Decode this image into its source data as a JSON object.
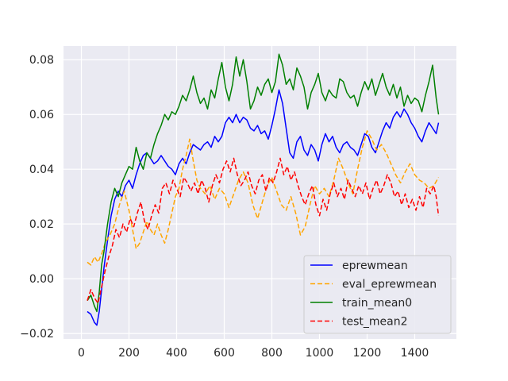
{
  "chart_data": {
    "type": "line",
    "title": "",
    "xlabel": "",
    "ylabel": "",
    "xlim": [
      -75,
      1575
    ],
    "ylim": [
      -0.022,
      0.085
    ],
    "xticks": [
      0,
      200,
      400,
      600,
      800,
      1000,
      1200,
      1400
    ],
    "yticks": [
      -0.02,
      0.0,
      0.02,
      0.04,
      0.06,
      0.08
    ],
    "ytick_labels": [
      "−0.02",
      "0.00",
      "0.02",
      "0.04",
      "0.06",
      "0.08"
    ],
    "grid": true,
    "background": "#eaeaf2",
    "legend_position": "lower right",
    "series": [
      {
        "name": "eprewmean",
        "color": "#0000ff",
        "dash": "solid",
        "x": [
          25,
          40,
          55,
          65,
          75,
          85,
          95,
          110,
          125,
          140,
          155,
          170,
          185,
          200,
          215,
          230,
          245,
          260,
          275,
          290,
          305,
          320,
          335,
          350,
          365,
          380,
          395,
          410,
          425,
          440,
          455,
          470,
          485,
          500,
          515,
          530,
          545,
          560,
          575,
          590,
          605,
          620,
          635,
          650,
          665,
          680,
          695,
          710,
          725,
          740,
          755,
          770,
          785,
          800,
          815,
          830,
          845,
          860,
          875,
          890,
          905,
          920,
          935,
          950,
          965,
          980,
          995,
          1010,
          1025,
          1040,
          1055,
          1070,
          1085,
          1100,
          1115,
          1130,
          1145,
          1160,
          1175,
          1190,
          1205,
          1220,
          1235,
          1250,
          1265,
          1280,
          1295,
          1310,
          1325,
          1340,
          1355,
          1370,
          1385,
          1400,
          1415,
          1430,
          1445,
          1460,
          1475,
          1490,
          1500
        ],
        "y": [
          -0.012,
          -0.013,
          -0.016,
          -0.017,
          -0.012,
          -0.004,
          0.004,
          0.014,
          0.023,
          0.029,
          0.032,
          0.03,
          0.034,
          0.036,
          0.033,
          0.038,
          0.042,
          0.045,
          0.046,
          0.044,
          0.042,
          0.043,
          0.045,
          0.043,
          0.041,
          0.04,
          0.038,
          0.042,
          0.044,
          0.042,
          0.046,
          0.049,
          0.048,
          0.047,
          0.049,
          0.05,
          0.048,
          0.052,
          0.05,
          0.052,
          0.057,
          0.059,
          0.057,
          0.06,
          0.057,
          0.059,
          0.058,
          0.055,
          0.054,
          0.056,
          0.053,
          0.054,
          0.051,
          0.056,
          0.062,
          0.069,
          0.064,
          0.055,
          0.046,
          0.044,
          0.05,
          0.052,
          0.047,
          0.045,
          0.049,
          0.047,
          0.043,
          0.049,
          0.053,
          0.05,
          0.052,
          0.048,
          0.046,
          0.049,
          0.05,
          0.048,
          0.047,
          0.045,
          0.049,
          0.053,
          0.052,
          0.048,
          0.046,
          0.05,
          0.054,
          0.057,
          0.055,
          0.059,
          0.061,
          0.059,
          0.062,
          0.06,
          0.057,
          0.055,
          0.052,
          0.05,
          0.054,
          0.057,
          0.055,
          0.053,
          0.057
        ]
      },
      {
        "name": "eval_eprewmean",
        "color": "#ffa500",
        "dash": "6,3",
        "x": [
          25,
          40,
          55,
          70,
          85,
          100,
          120,
          140,
          160,
          180,
          200,
          215,
          230,
          245,
          260,
          275,
          290,
          305,
          320,
          335,
          350,
          365,
          380,
          395,
          410,
          425,
          440,
          455,
          470,
          485,
          500,
          520,
          540,
          560,
          580,
          600,
          620,
          640,
          660,
          680,
          700,
          720,
          740,
          760,
          780,
          800,
          820,
          840,
          860,
          880,
          900,
          920,
          940,
          960,
          980,
          1000,
          1020,
          1040,
          1060,
          1080,
          1100,
          1120,
          1140,
          1160,
          1180,
          1200,
          1220,
          1240,
          1260,
          1280,
          1300,
          1320,
          1340,
          1360,
          1380,
          1400,
          1420,
          1440,
          1460,
          1480,
          1500
        ],
        "y": [
          0.006,
          0.005,
          0.008,
          0.006,
          0.009,
          0.013,
          0.016,
          0.02,
          0.027,
          0.032,
          0.025,
          0.018,
          0.011,
          0.013,
          0.017,
          0.021,
          0.018,
          0.016,
          0.02,
          0.016,
          0.013,
          0.018,
          0.024,
          0.03,
          0.033,
          0.04,
          0.045,
          0.051,
          0.043,
          0.036,
          0.033,
          0.031,
          0.034,
          0.029,
          0.033,
          0.031,
          0.026,
          0.031,
          0.036,
          0.039,
          0.035,
          0.027,
          0.022,
          0.028,
          0.034,
          0.037,
          0.032,
          0.027,
          0.025,
          0.03,
          0.024,
          0.016,
          0.019,
          0.027,
          0.034,
          0.031,
          0.033,
          0.03,
          0.036,
          0.044,
          0.04,
          0.035,
          0.031,
          0.04,
          0.048,
          0.054,
          0.051,
          0.047,
          0.049,
          0.046,
          0.042,
          0.038,
          0.035,
          0.039,
          0.042,
          0.038,
          0.036,
          0.035,
          0.033,
          0.034,
          0.037
        ]
      },
      {
        "name": "train_mean0",
        "color": "#008000",
        "dash": "solid",
        "x": [
          25,
          40,
          55,
          65,
          75,
          85,
          95,
          110,
          125,
          140,
          155,
          170,
          185,
          200,
          215,
          230,
          245,
          260,
          275,
          290,
          305,
          320,
          335,
          350,
          365,
          380,
          395,
          410,
          425,
          440,
          455,
          470,
          485,
          500,
          515,
          530,
          545,
          560,
          575,
          590,
          605,
          620,
          635,
          650,
          665,
          680,
          695,
          710,
          725,
          740,
          755,
          770,
          785,
          800,
          815,
          830,
          845,
          860,
          875,
          890,
          905,
          920,
          935,
          950,
          965,
          980,
          995,
          1010,
          1025,
          1040,
          1055,
          1070,
          1085,
          1100,
          1115,
          1130,
          1145,
          1160,
          1175,
          1190,
          1205,
          1220,
          1235,
          1250,
          1265,
          1280,
          1295,
          1310,
          1325,
          1340,
          1355,
          1370,
          1385,
          1400,
          1415,
          1430,
          1445,
          1460,
          1475,
          1490,
          1500
        ],
        "y": [
          -0.008,
          -0.006,
          -0.01,
          -0.012,
          -0.005,
          0.005,
          0.01,
          0.02,
          0.028,
          0.033,
          0.03,
          0.035,
          0.038,
          0.041,
          0.04,
          0.048,
          0.043,
          0.04,
          0.046,
          0.044,
          0.049,
          0.053,
          0.056,
          0.06,
          0.058,
          0.061,
          0.06,
          0.063,
          0.067,
          0.065,
          0.069,
          0.074,
          0.068,
          0.064,
          0.066,
          0.062,
          0.069,
          0.066,
          0.073,
          0.079,
          0.07,
          0.065,
          0.071,
          0.081,
          0.074,
          0.08,
          0.072,
          0.062,
          0.065,
          0.07,
          0.067,
          0.071,
          0.073,
          0.068,
          0.072,
          0.082,
          0.078,
          0.071,
          0.073,
          0.069,
          0.077,
          0.074,
          0.07,
          0.062,
          0.068,
          0.071,
          0.075,
          0.068,
          0.065,
          0.069,
          0.067,
          0.066,
          0.073,
          0.072,
          0.068,
          0.066,
          0.067,
          0.063,
          0.068,
          0.072,
          0.069,
          0.073,
          0.067,
          0.071,
          0.075,
          0.07,
          0.067,
          0.071,
          0.066,
          0.07,
          0.063,
          0.067,
          0.064,
          0.066,
          0.065,
          0.061,
          0.067,
          0.072,
          0.078,
          0.066,
          0.06
        ]
      },
      {
        "name": "test_mean2",
        "color": "#ff0000",
        "dash": "6,3",
        "x": [
          25,
          40,
          55,
          70,
          85,
          100,
          115,
          130,
          145,
          160,
          175,
          190,
          205,
          220,
          235,
          250,
          265,
          280,
          295,
          310,
          325,
          340,
          355,
          370,
          385,
          400,
          415,
          430,
          445,
          460,
          475,
          490,
          505,
          520,
          535,
          550,
          565,
          580,
          595,
          610,
          625,
          640,
          655,
          670,
          685,
          700,
          715,
          730,
          745,
          760,
          775,
          790,
          805,
          820,
          835,
          850,
          865,
          880,
          895,
          910,
          925,
          940,
          955,
          970,
          985,
          1000,
          1015,
          1030,
          1045,
          1060,
          1075,
          1090,
          1105,
          1120,
          1135,
          1150,
          1165,
          1180,
          1195,
          1210,
          1225,
          1240,
          1255,
          1270,
          1285,
          1300,
          1315,
          1330,
          1345,
          1360,
          1375,
          1390,
          1405,
          1420,
          1435,
          1450,
          1465,
          1480,
          1490,
          1500
        ],
        "y": [
          -0.008,
          -0.004,
          -0.007,
          -0.009,
          -0.003,
          0.003,
          0.008,
          0.012,
          0.018,
          0.015,
          0.02,
          0.017,
          0.022,
          0.019,
          0.024,
          0.028,
          0.021,
          0.018,
          0.023,
          0.027,
          0.024,
          0.033,
          0.035,
          0.031,
          0.036,
          0.033,
          0.03,
          0.037,
          0.035,
          0.032,
          0.035,
          0.031,
          0.036,
          0.033,
          0.028,
          0.034,
          0.038,
          0.035,
          0.04,
          0.043,
          0.039,
          0.044,
          0.038,
          0.034,
          0.036,
          0.039,
          0.034,
          0.031,
          0.036,
          0.038,
          0.032,
          0.037,
          0.035,
          0.039,
          0.044,
          0.038,
          0.041,
          0.036,
          0.039,
          0.034,
          0.03,
          0.027,
          0.031,
          0.034,
          0.027,
          0.023,
          0.029,
          0.025,
          0.031,
          0.035,
          0.03,
          0.033,
          0.029,
          0.036,
          0.033,
          0.03,
          0.034,
          0.031,
          0.035,
          0.029,
          0.033,
          0.036,
          0.031,
          0.034,
          0.038,
          0.035,
          0.03,
          0.032,
          0.027,
          0.031,
          0.026,
          0.029,
          0.025,
          0.03,
          0.026,
          0.033,
          0.031,
          0.034,
          0.03,
          0.023
        ]
      }
    ]
  }
}
